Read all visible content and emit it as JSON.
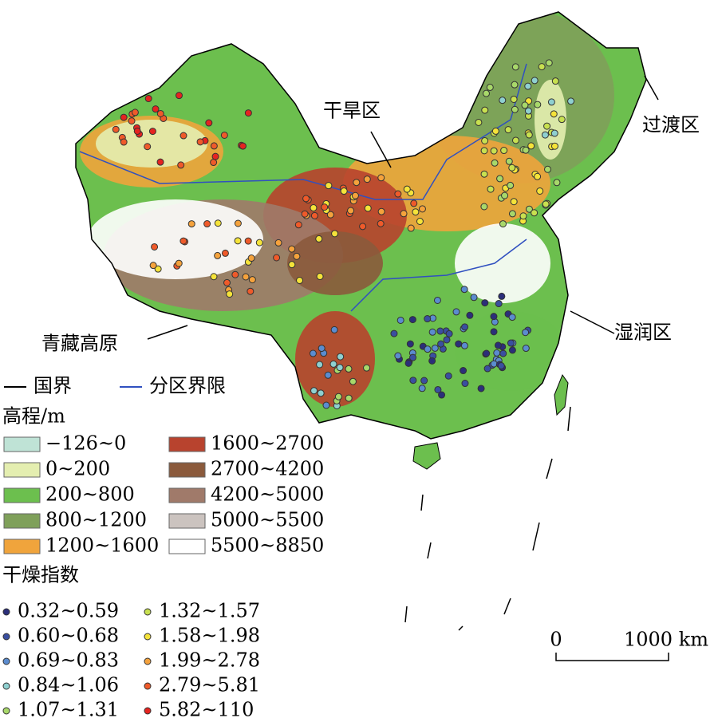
{
  "labels": {
    "arid": "干旱区",
    "transition": "过渡区",
    "humid": "湿润区",
    "plateau": "青藏高原"
  },
  "boundaries": [
    {
      "label": "国界",
      "color": "#000000"
    },
    {
      "label": "分区界限",
      "color": "#3050c0"
    }
  ],
  "elevation": {
    "title": "高程/m",
    "classes": [
      {
        "label": "−126~0",
        "color": "#bfe3d6"
      },
      {
        "label": "0~200",
        "color": "#e4eeb0"
      },
      {
        "label": "200~800",
        "color": "#6cbf4e"
      },
      {
        "label": "800~1200",
        "color": "#7fa05a"
      },
      {
        "label": "1200~1600",
        "color": "#f0a43c"
      },
      {
        "label": "1600~2700",
        "color": "#b8432e"
      },
      {
        "label": "2700~4200",
        "color": "#8b5a3c"
      },
      {
        "label": "4200~5000",
        "color": "#a07a6a"
      },
      {
        "label": "5000~5500",
        "color": "#cbc3bf"
      },
      {
        "label": "5500~8850",
        "color": "#ffffff"
      }
    ]
  },
  "aridity": {
    "title": "干燥指数",
    "classes": [
      {
        "label": "0.32~0.59",
        "color": "#2b2f7a"
      },
      {
        "label": "0.60~0.68",
        "color": "#3a4fa0"
      },
      {
        "label": "0.69~0.83",
        "color": "#5b8ccf"
      },
      {
        "label": "0.84~1.06",
        "color": "#8fd0d0"
      },
      {
        "label": "1.07~1.31",
        "color": "#a8d86a"
      },
      {
        "label": "1.32~1.57",
        "color": "#c8e050"
      },
      {
        "label": "1.58~1.98",
        "color": "#f5e33a"
      },
      {
        "label": "1.99~2.78",
        "color": "#f5a23c"
      },
      {
        "label": "2.79~5.81",
        "color": "#ef5a2a"
      },
      {
        "label": "5.82~110",
        "color": "#e52420"
      }
    ]
  },
  "scale": {
    "start": "0",
    "end": "1000 km"
  }
}
